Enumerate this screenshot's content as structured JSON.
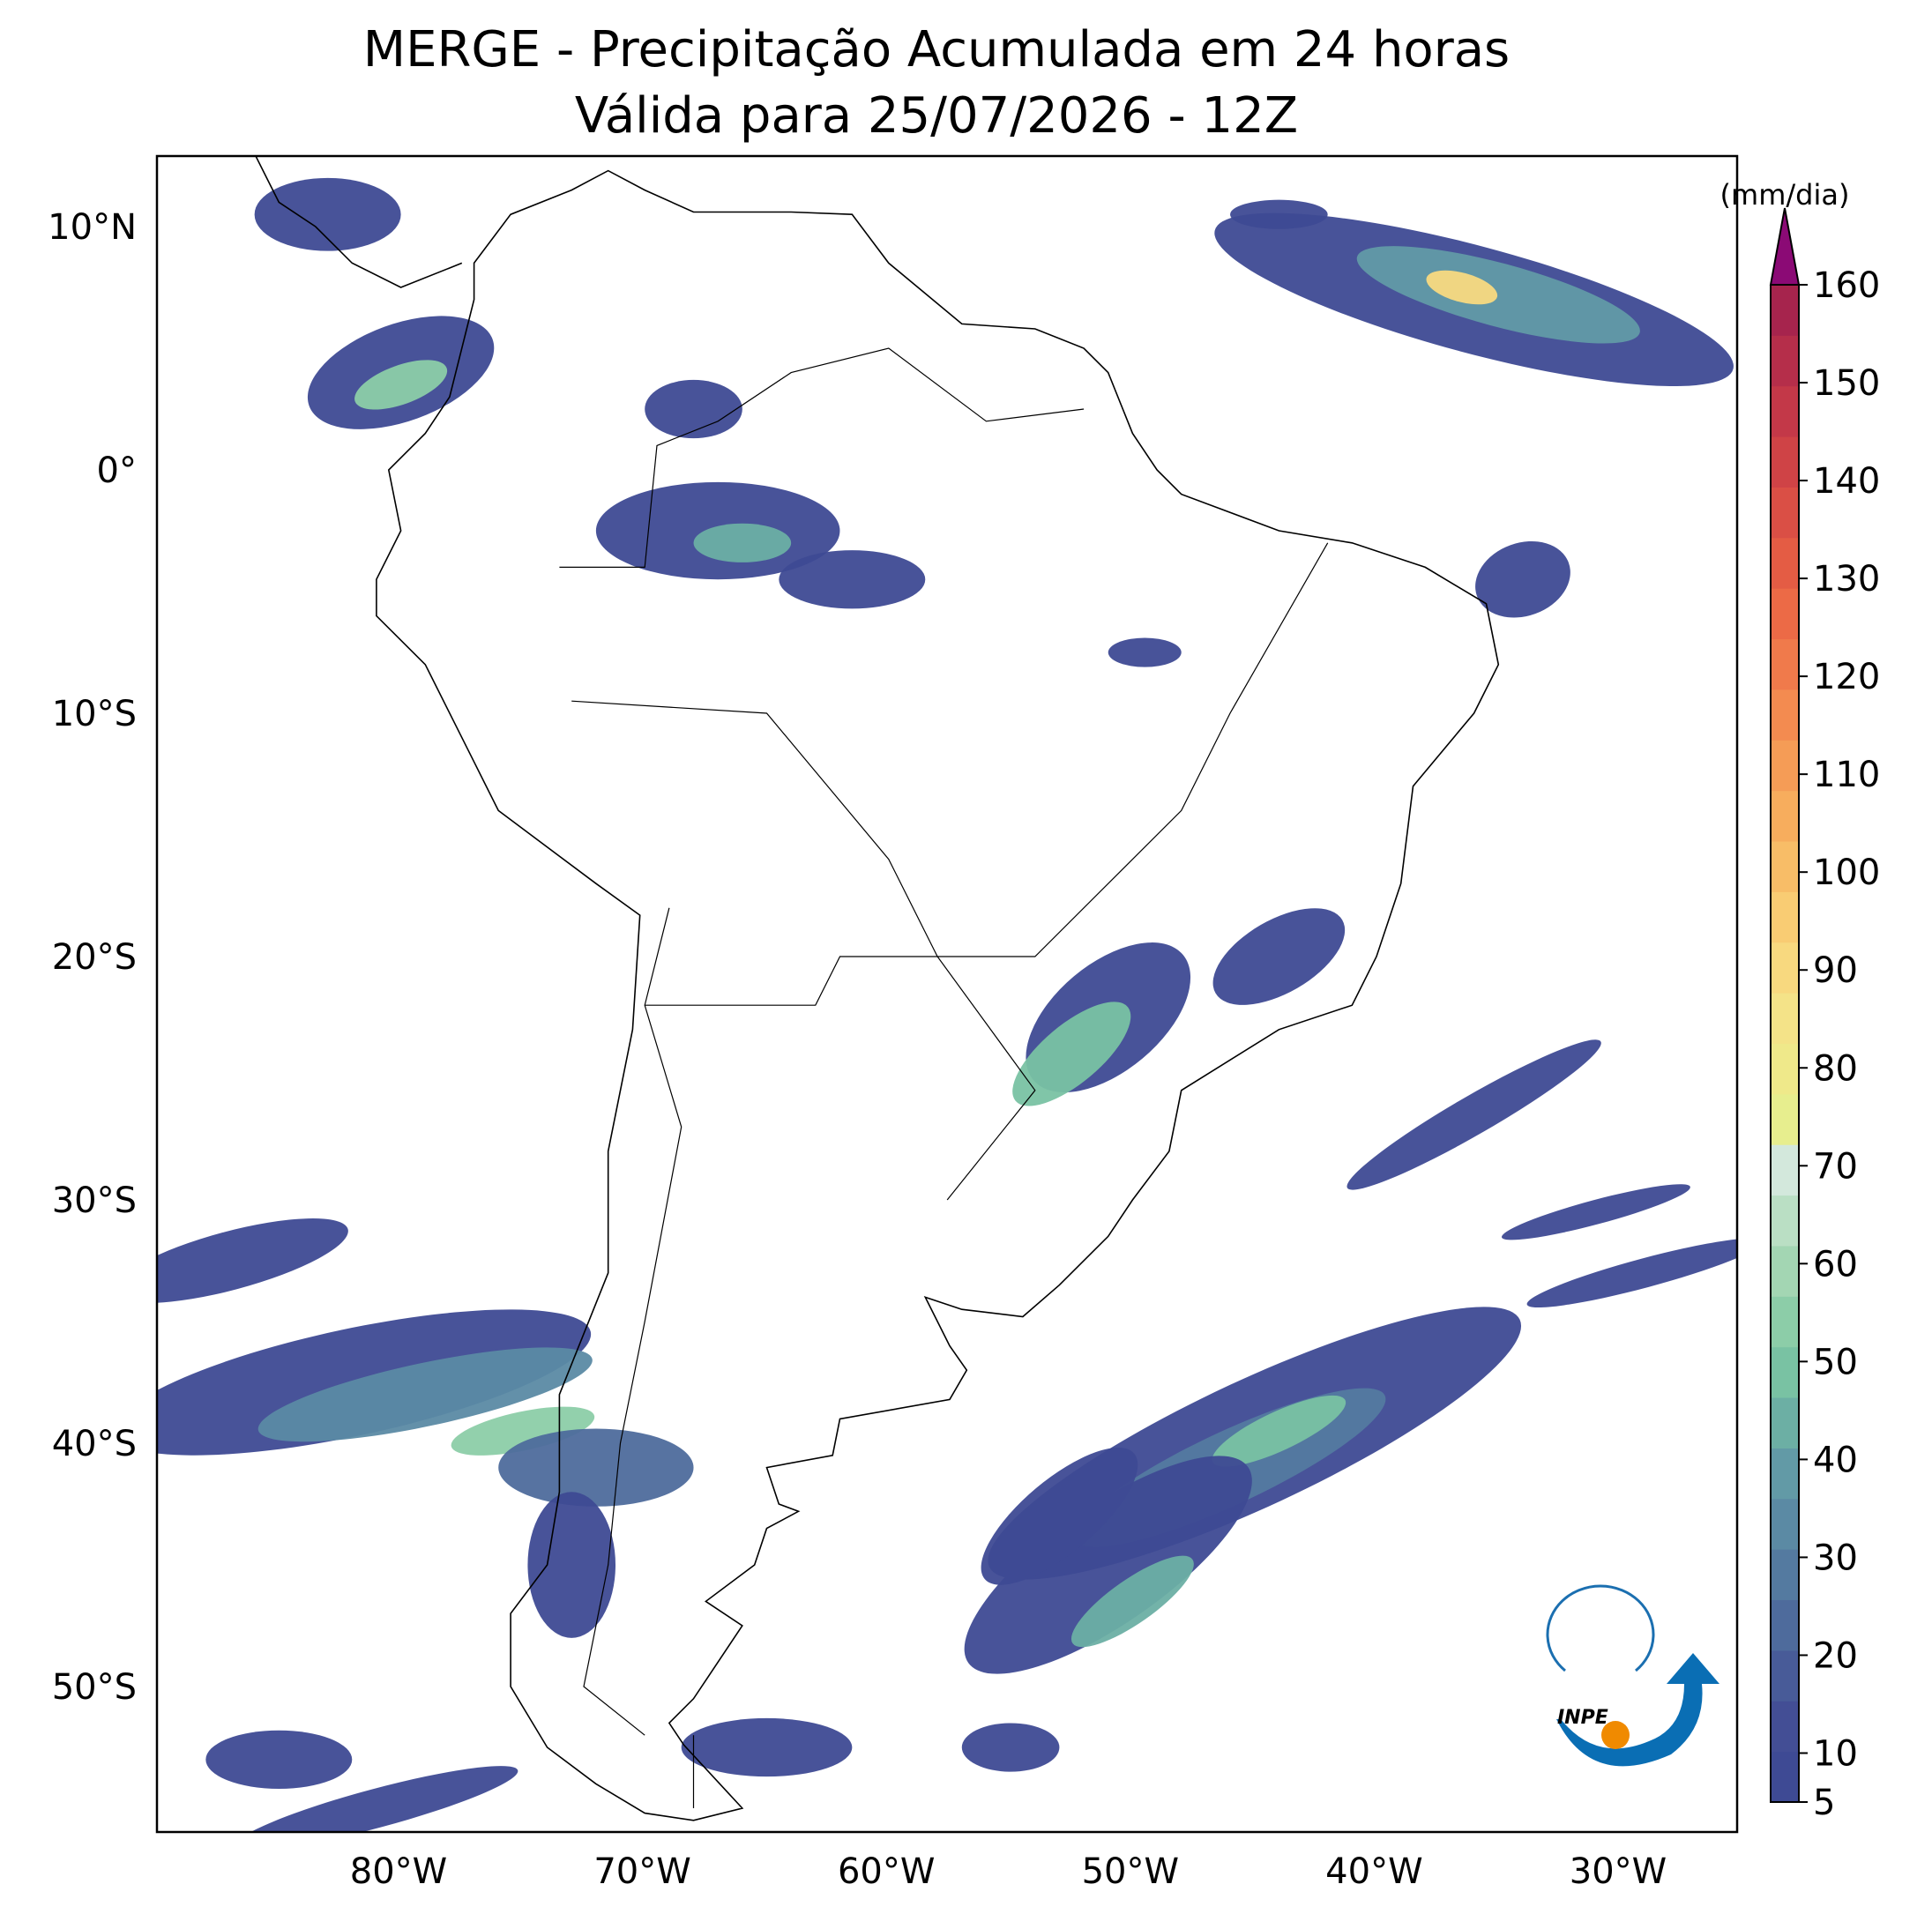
{
  "header": {
    "title": "MERGE - Precipitação Acumulada em 24 horas",
    "subtitle": "Válida para 25/07/2026 - 12Z"
  },
  "map": {
    "lon_labels": [
      "80°W",
      "70°W",
      "60°W",
      "50°W",
      "40°W",
      "30°W"
    ],
    "lat_labels": [
      "10°N",
      "0°",
      "10°S",
      "20°S",
      "30°S",
      "40°S",
      "50°S"
    ]
  },
  "colorbar": {
    "unit": "(mm/dia)",
    "ticks": [
      5,
      10,
      20,
      30,
      40,
      50,
      60,
      70,
      80,
      90,
      100,
      110,
      120,
      130,
      140,
      150,
      160
    ],
    "colors": [
      "#3e4a94",
      "#434e95",
      "#485b98",
      "#4e6b9c",
      "#547aa0",
      "#5b8aa4",
      "#629aa6",
      "#6cafa4",
      "#79c2a3",
      "#8ccda8",
      "#a3d6b3",
      "#badfc4",
      "#d3e8dc",
      "#e7ee8e",
      "#efe98a",
      "#f4e388",
      "#f8d97f",
      "#f9cc73",
      "#f8bd67",
      "#f7ad5d",
      "#f59c56",
      "#f38b50",
      "#f07a4b",
      "#ec6a46",
      "#e45c44",
      "#da4f45",
      "#cf4346",
      "#c33848",
      "#b52e4a",
      "#a6244d",
      "#8b0a75"
    ]
  },
  "logo": {
    "text": "INPE"
  }
}
